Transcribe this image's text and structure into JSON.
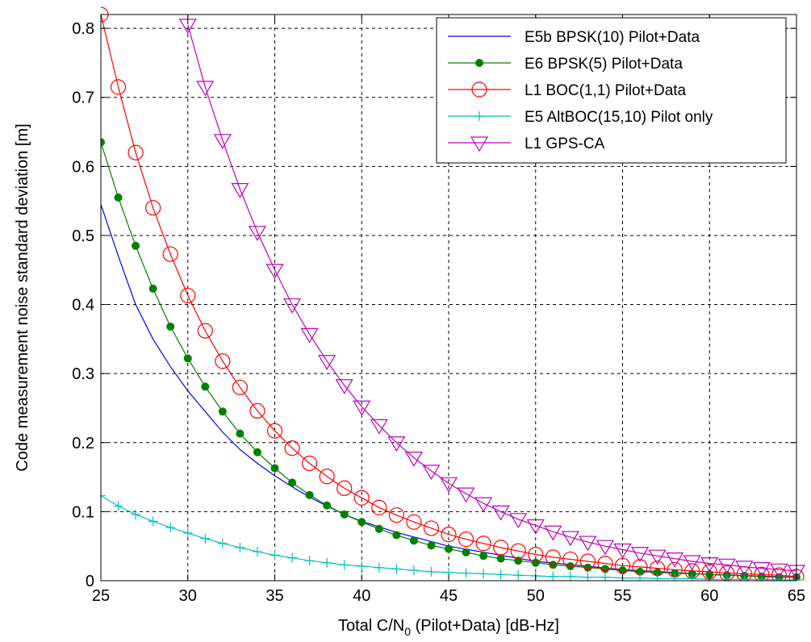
{
  "chart_data": {
    "type": "line",
    "xlabel": "Total C/N",
    "xlabel_sub": "0",
    "xlabel_suffix": " (Pilot+Data) [dB-Hz]",
    "ylabel": "Code measurement noise standard deviation [m]",
    "xlim": [
      25,
      65
    ],
    "ylim": [
      0,
      0.82
    ],
    "xticks": [
      25,
      30,
      35,
      40,
      45,
      50,
      55,
      60,
      65
    ],
    "yticks": [
      0,
      0.1,
      0.2,
      0.3,
      0.4,
      0.5,
      0.6,
      0.7,
      0.8
    ],
    "xtick_labels": [
      "25",
      "30",
      "35",
      "40",
      "45",
      "50",
      "55",
      "60",
      "65"
    ],
    "ytick_labels": [
      "0",
      "0.1",
      "0.2",
      "0.3",
      "0.4",
      "0.5",
      "0.6",
      "0.7",
      "0.8"
    ],
    "grid": true,
    "legend_position": "top-right",
    "series": [
      {
        "name": "E5b BPSK(10) Pilot+Data",
        "color": "#0000ff",
        "marker": "none",
        "x": [
          25,
          26,
          27,
          28,
          29,
          30,
          31,
          32,
          33,
          34,
          35,
          36,
          37,
          38,
          39,
          40,
          42,
          45,
          50,
          55,
          60,
          65
        ],
        "y": [
          0.545,
          0.47,
          0.4,
          0.35,
          0.31,
          0.275,
          0.245,
          0.215,
          0.19,
          0.17,
          0.152,
          0.136,
          0.121,
          0.108,
          0.096,
          0.086,
          0.07,
          0.05,
          0.028,
          0.016,
          0.009,
          0.005
        ]
      },
      {
        "name": "E6 BPSK(5) Pilot+Data",
        "color": "#008000",
        "marker": "dot",
        "x": [
          25,
          26,
          27,
          28,
          29,
          30,
          31,
          32,
          33,
          34,
          35,
          36,
          37,
          38,
          39,
          40,
          41,
          42,
          43,
          44,
          45,
          46,
          47,
          48,
          49,
          50,
          51,
          52,
          53,
          54,
          55,
          56,
          57,
          58,
          59,
          60,
          61,
          62,
          63,
          64,
          65
        ],
        "y": [
          0.635,
          0.555,
          0.485,
          0.423,
          0.368,
          0.322,
          0.281,
          0.245,
          0.213,
          0.186,
          0.163,
          0.142,
          0.124,
          0.109,
          0.096,
          0.085,
          0.075,
          0.066,
          0.058,
          0.051,
          0.046,
          0.041,
          0.036,
          0.032,
          0.029,
          0.026,
          0.023,
          0.021,
          0.019,
          0.017,
          0.015,
          0.013,
          0.012,
          0.011,
          0.01,
          0.009,
          0.008,
          0.007,
          0.006,
          0.005,
          0.005
        ]
      },
      {
        "name": "L1 BOC(1,1) Pilot+Data",
        "color": "#ff0000",
        "marker": "circle",
        "x": [
          25,
          26,
          27,
          28,
          29,
          30,
          31,
          32,
          33,
          34,
          35,
          36,
          37,
          38,
          39,
          40,
          41,
          42,
          43,
          44,
          45,
          46,
          47,
          48,
          49,
          50,
          51,
          52,
          53,
          54,
          55,
          56,
          57,
          58,
          59,
          60,
          61,
          62,
          63,
          64,
          65
        ],
        "y": [
          0.82,
          0.715,
          0.62,
          0.54,
          0.473,
          0.413,
          0.362,
          0.318,
          0.28,
          0.246,
          0.217,
          0.192,
          0.17,
          0.151,
          0.134,
          0.12,
          0.106,
          0.095,
          0.085,
          0.076,
          0.067,
          0.06,
          0.054,
          0.048,
          0.043,
          0.038,
          0.034,
          0.031,
          0.028,
          0.025,
          0.022,
          0.02,
          0.018,
          0.016,
          0.014,
          0.013,
          0.011,
          0.01,
          0.009,
          0.008,
          0.006
        ]
      },
      {
        "name": "E5 AltBOC(15,10) Pilot only",
        "color": "#00bfbf",
        "marker": "plus",
        "x": [
          25,
          26,
          27,
          28,
          29,
          30,
          31,
          32,
          33,
          34,
          35,
          36,
          37,
          38,
          39,
          40,
          41,
          42,
          43,
          44,
          45,
          46,
          47,
          48,
          49,
          50,
          51,
          52,
          53,
          54,
          55,
          56,
          57,
          58,
          59,
          60,
          61,
          62,
          63,
          64,
          65
        ],
        "y": [
          0.123,
          0.108,
          0.096,
          0.086,
          0.077,
          0.069,
          0.061,
          0.054,
          0.048,
          0.042,
          0.037,
          0.033,
          0.029,
          0.026,
          0.023,
          0.021,
          0.019,
          0.017,
          0.015,
          0.013,
          0.012,
          0.011,
          0.01,
          0.009,
          0.008,
          0.007,
          0.006,
          0.006,
          0.005,
          0.005,
          0.004,
          0.004,
          0.003,
          0.003,
          0.003,
          0.002,
          0.002,
          0.002,
          0.002,
          0.001,
          0.001
        ]
      },
      {
        "name": "L1 GPS-CA",
        "color": "#bf00bf",
        "marker": "triangle-down",
        "x": [
          30,
          31,
          32,
          33,
          34,
          35,
          36,
          37,
          38,
          39,
          40,
          41,
          42,
          43,
          44,
          45,
          46,
          47,
          48,
          49,
          50,
          51,
          52,
          53,
          54,
          55,
          56,
          57,
          58,
          59,
          60,
          61,
          62,
          63,
          64,
          65
        ],
        "y": [
          0.805,
          0.715,
          0.638,
          0.567,
          0.505,
          0.45,
          0.4,
          0.357,
          0.318,
          0.283,
          0.252,
          0.225,
          0.2,
          0.178,
          0.159,
          0.141,
          0.126,
          0.112,
          0.1,
          0.089,
          0.08,
          0.071,
          0.063,
          0.056,
          0.05,
          0.045,
          0.04,
          0.036,
          0.032,
          0.028,
          0.025,
          0.023,
          0.02,
          0.018,
          0.016,
          0.014
        ]
      }
    ]
  }
}
